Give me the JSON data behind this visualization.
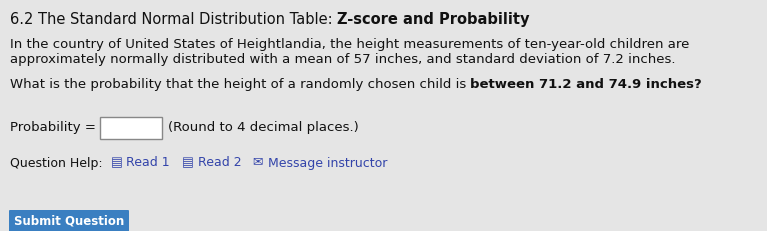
{
  "background_color": "#e5e5e5",
  "title_normal": "6.2 The Standard Normal Distribution Table: ",
  "title_bold": "Z-score and Probability",
  "paragraph1_line1": "In the country of United States of Heightlandia, the height measurements of ten-year-old children are",
  "paragraph1_line2": "approximately normally distributed with a mean of 57 inches, and standard deviation of 7.2 inches.",
  "paragraph2_normal": "What is the probability that the height of a randomly chosen child is ",
  "paragraph2_bold": "between 71.2 and 74.9 inches?",
  "prob_label": "Probability = ",
  "prob_hint": "(Round to 4 decimal places.)",
  "help_label": "Question Help:",
  "read1_text": "Read 1",
  "read2_text": "Read 2",
  "msg_text": "Message instructor",
  "submit_text": "Submit Question",
  "submit_color": "#3a7fc1",
  "text_color": "#111111",
  "link_color": "#3344aa",
  "font_size_title": 10.5,
  "font_size_body": 9.5,
  "font_size_help": 9.0
}
